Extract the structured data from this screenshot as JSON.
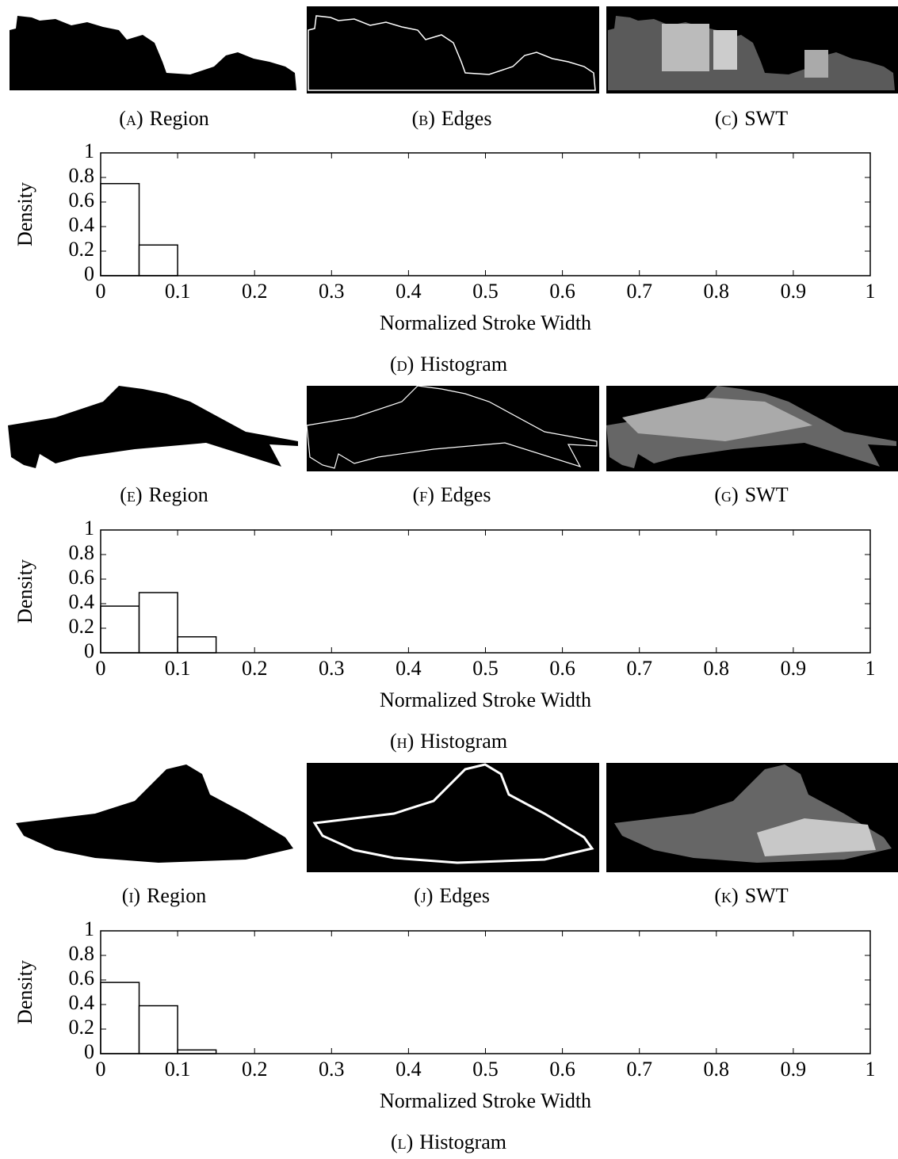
{
  "panels": [
    {
      "label": "(a)",
      "text": "Region"
    },
    {
      "label": "(b)",
      "text": "Edges"
    },
    {
      "label": "(c)",
      "text": "SWT"
    },
    {
      "label": "(e)",
      "text": "Region"
    },
    {
      "label": "(f)",
      "text": "Edges"
    },
    {
      "label": "(g)",
      "text": "SWT"
    },
    {
      "label": "(i)",
      "text": "Region"
    },
    {
      "label": "(j)",
      "text": "Edges"
    },
    {
      "label": "(k)",
      "text": "SWT"
    }
  ],
  "chart_data": [
    {
      "type": "histogram",
      "label": "(d)",
      "caption": "Histogram",
      "x_label": "Normalized Stroke Width",
      "y_label": "Density",
      "bins": [
        0,
        0.05,
        0.1,
        0.15,
        0.2,
        0.25,
        0.3,
        0.35,
        0.4,
        0.45,
        0.5,
        0.55,
        0.6,
        0.65,
        0.7,
        0.75,
        0.8,
        0.85,
        0.9,
        0.95,
        1
      ],
      "values": [
        0.75,
        0.25,
        0,
        0,
        0,
        0,
        0,
        0,
        0,
        0,
        0,
        0,
        0,
        0,
        0,
        0,
        0,
        0,
        0,
        0
      ],
      "xlim": [
        0,
        1
      ],
      "ylim": [
        0,
        1
      ],
      "xticks": [
        0,
        0.1,
        0.2,
        0.3,
        0.4,
        0.5,
        0.6,
        0.7,
        0.8,
        0.9,
        1
      ],
      "yticks": [
        0,
        0.2,
        0.4,
        0.6,
        0.8,
        1
      ]
    },
    {
      "type": "histogram",
      "label": "(h)",
      "caption": "Histogram",
      "x_label": "Normalized Stroke Width",
      "y_label": "Density",
      "bins": [
        0,
        0.05,
        0.1,
        0.15,
        0.2,
        0.25,
        0.3,
        0.35,
        0.4,
        0.45,
        0.5,
        0.55,
        0.6,
        0.65,
        0.7,
        0.75,
        0.8,
        0.85,
        0.9,
        0.95,
        1
      ],
      "values": [
        0.38,
        0.49,
        0.13,
        0,
        0,
        0,
        0,
        0,
        0,
        0,
        0,
        0,
        0,
        0,
        0,
        0,
        0,
        0,
        0,
        0
      ],
      "xlim": [
        0,
        1
      ],
      "ylim": [
        0,
        1
      ],
      "xticks": [
        0,
        0.1,
        0.2,
        0.3,
        0.4,
        0.5,
        0.6,
        0.7,
        0.8,
        0.9,
        1
      ],
      "yticks": [
        0,
        0.2,
        0.4,
        0.6,
        0.8,
        1
      ]
    },
    {
      "type": "histogram",
      "label": "(l)",
      "caption": "Histogram",
      "x_label": "Normalized Stroke Width",
      "y_label": "Density",
      "bins": [
        0,
        0.05,
        0.1,
        0.15,
        0.2,
        0.25,
        0.3,
        0.35,
        0.4,
        0.45,
        0.5,
        0.55,
        0.6,
        0.65,
        0.7,
        0.75,
        0.8,
        0.85,
        0.9,
        0.95,
        1
      ],
      "values": [
        0.58,
        0.39,
        0.03,
        0,
        0,
        0,
        0,
        0,
        0,
        0,
        0,
        0,
        0,
        0,
        0,
        0,
        0,
        0,
        0,
        0
      ],
      "xlim": [
        0,
        1
      ],
      "ylim": [
        0,
        1
      ],
      "xticks": [
        0,
        0.1,
        0.2,
        0.3,
        0.4,
        0.5,
        0.6,
        0.7,
        0.8,
        0.9,
        1
      ],
      "yticks": [
        0,
        0.2,
        0.4,
        0.6,
        0.8,
        1
      ]
    }
  ]
}
